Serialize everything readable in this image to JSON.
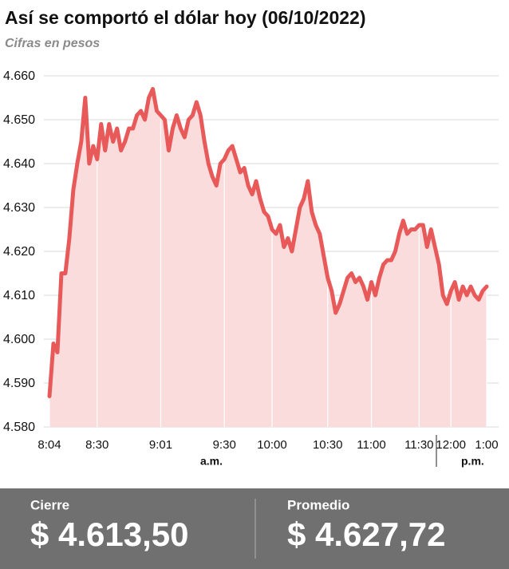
{
  "chart_data": {
    "type": "area-line",
    "title": "Así se comportó el dólar hoy (06/10/2022)",
    "subtitle": "Cifras en pesos",
    "categories": [
      "8:04",
      null,
      null,
      null,
      null,
      null,
      null,
      null,
      null,
      null,
      null,
      null,
      "8:30",
      null,
      null,
      null,
      null,
      null,
      null,
      null,
      null,
      null,
      null,
      null,
      null,
      null,
      null,
      null,
      "9:01",
      null,
      null,
      null,
      null,
      null,
      null,
      null,
      null,
      null,
      null,
      null,
      null,
      null,
      null,
      null,
      "9:30",
      null,
      null,
      null,
      null,
      null,
      null,
      null,
      null,
      null,
      null,
      null,
      "10:00",
      null,
      null,
      null,
      null,
      null,
      null,
      null,
      null,
      null,
      null,
      null,
      null,
      null,
      "10:30",
      null,
      null,
      null,
      null,
      null,
      null,
      null,
      null,
      null,
      null,
      "11:00",
      null,
      null,
      null,
      null,
      null,
      null,
      null,
      null,
      null,
      null,
      null,
      "11:30",
      null,
      null,
      null,
      null,
      null,
      null,
      null,
      "12:00",
      null,
      null,
      null,
      null,
      null,
      null,
      null,
      null,
      "1:00"
    ],
    "values": [
      4.587,
      4.599,
      4.597,
      4.615,
      4.615,
      4.623,
      4.634,
      4.64,
      4.645,
      4.655,
      4.64,
      4.644,
      4.641,
      4.649,
      4.643,
      4.649,
      4.645,
      4.648,
      4.643,
      4.645,
      4.648,
      4.648,
      4.651,
      4.652,
      4.65,
      4.655,
      4.657,
      4.652,
      4.651,
      4.65,
      4.643,
      4.648,
      4.651,
      4.648,
      4.646,
      4.65,
      4.651,
      4.654,
      4.651,
      4.645,
      4.64,
      4.637,
      4.635,
      4.64,
      4.641,
      4.643,
      4.644,
      4.641,
      4.638,
      4.639,
      4.635,
      4.633,
      4.636,
      4.632,
      4.629,
      4.628,
      4.625,
      4.624,
      4.626,
      4.621,
      4.623,
      4.62,
      4.625,
      4.63,
      4.632,
      4.636,
      4.629,
      4.626,
      4.624,
      4.619,
      4.614,
      4.611,
      4.606,
      4.608,
      4.611,
      4.614,
      4.615,
      4.613,
      4.614,
      4.612,
      4.609,
      4.613,
      4.61,
      4.614,
      4.617,
      4.618,
      4.618,
      4.62,
      4.624,
      4.627,
      4.624,
      4.625,
      4.625,
      4.626,
      4.626,
      4.621,
      4.625,
      4.621,
      4.617,
      4.61,
      4.608,
      4.611,
      4.613,
      4.609,
      4.612,
      4.61,
      4.612,
      4.61,
      4.609,
      4.611,
      4.612
    ],
    "color": "#e85a5a",
    "fill_color": "#fbdcdc",
    "ylim": [
      4.58,
      4.66
    ],
    "yticks": [
      {
        "value": 4.58,
        "label": "4.580"
      },
      {
        "value": 4.59,
        "label": "4.590"
      },
      {
        "value": 4.6,
        "label": "4.600"
      },
      {
        "value": 4.61,
        "label": "4.610"
      },
      {
        "value": 4.62,
        "label": "4.620"
      },
      {
        "value": 4.63,
        "label": "4.630"
      },
      {
        "value": 4.64,
        "label": "4.640"
      },
      {
        "value": 4.65,
        "label": "4.650"
      },
      {
        "value": 4.66,
        "label": "4.660"
      }
    ],
    "grid": true,
    "period_labels": [
      "a.m.",
      "p.m."
    ]
  },
  "summary": [
    {
      "label": "Cierre",
      "value": "$ 4.613,50"
    },
    {
      "label": "Promedio",
      "value": "$ 4.627,72"
    }
  ]
}
